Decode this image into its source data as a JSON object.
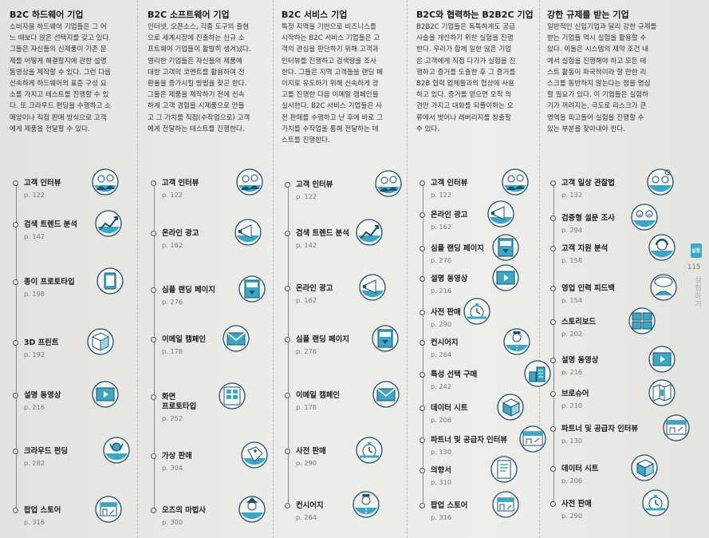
{
  "colors": {
    "accent": "#3aa7c4",
    "dark": "#1f4f6e",
    "line": "#8a8a88"
  },
  "side": {
    "tab_label": "실험",
    "page_number": "115",
    "section_label": "실험하기"
  },
  "columns": [
    {
      "title": "B2C 하드웨어 기업",
      "desc": [
        "소비자용 하드웨어 기업들은 그 어",
        "느 때보다 많은 선택지를 갖고 있다.",
        "그들은 자신들의 신제품이 기존 문",
        "제를 어떻게 해결할지에 관한 설명",
        "동영상을 제작할 수 있다. 그런 다음",
        "신속하게 하드웨어의 표준 구성 요",
        "소를 가지고 테스트를 진행할 수 있",
        "다. 또 크라우드 펀딩을 수행하고 소",
        "매앙이나 직접 판매 방식으로 고객",
        "에게 제품을 전달할 수 있다."
      ],
      "methods": [
        {
          "name": "고객 인터뷰",
          "page": "p. 122",
          "icon": "people-talking-icon"
        },
        {
          "name": "검색 트렌드 분석",
          "page": "p. 142",
          "icon": "trend-chart-icon"
        },
        {
          "name": "종이 프로토타입",
          "page": "p. 198",
          "icon": "paper-tablet-icon"
        },
        {
          "name": "3D 프린트",
          "page": "p. 192",
          "icon": "cube-icon"
        },
        {
          "name": "설명 동영상",
          "page": "p. 216",
          "icon": "video-player-icon"
        },
        {
          "name": "크라우드 펀딩",
          "page": "p. 282",
          "icon": "crowd-funding-icon"
        },
        {
          "name": "팝업 스토어",
          "page": "p. 316",
          "icon": "popup-store-icon"
        }
      ]
    },
    {
      "title": "B2C 소프트웨어 기업",
      "desc": [
        "인터넷, 오픈소스, 각종 도구의 출현",
        "으로 세계시장에 진출하는 신규 소",
        "프트웨어 기업들이 활발히 생겨났다.",
        "영리한 기업들은 자신들의 제품에",
        "대한 고객의 코멘트를 활용하여 전",
        "환율을 증가시킬 방법을 찾곤 한다.",
        "그들은 제품을 제작하기 전에 신속",
        "하게 고객 경험을 시제품으로 만들",
        "고 그 가치를 직접(수작업으로) 고객",
        "에게 전달하는 테스트를 진행한다."
      ],
      "methods": [
        {
          "name": "고객 인터뷰",
          "page": "p. 122",
          "icon": "people-talking-icon"
        },
        {
          "name": "온라인 광고",
          "page": "p. 162",
          "icon": "megaphone-icon"
        },
        {
          "name": "심플 랜딩 페이지",
          "page": "p. 276",
          "icon": "landing-page-icon"
        },
        {
          "name": "이메일 캠페인",
          "page": "p. 178",
          "icon": "envelope-icon"
        },
        {
          "name": "화면\n프로토타입",
          "page": "p. 252",
          "icon": "screen-grid-icon"
        },
        {
          "name": "가상 판매",
          "page": "p. 304",
          "icon": "price-tag-icon"
        },
        {
          "name": "오즈의 마법사",
          "page": "p. 300",
          "icon": "wizard-icon"
        }
      ]
    },
    {
      "title": "B2C 서비스 기업",
      "desc": [
        "특정 지역을 기반으로 비즈니스를",
        "시작하는 B2C 서비스 기업들은 고",
        "객의 관심을 판단하기 위해 고객과",
        "인터뷰를 진행하고 검색량을 조사",
        "한다. 그들은 지역 고객들을 랜딩 페",
        "이지로 유도하기 위해 신속하게 광",
        "고를 진행한 다음 이메일 캠페인을",
        "실시한다. B2C 서비스 기업들은 사",
        "전 판매를 수행하고 난 후에 바로 그",
        "가치를 수작업을 통해 전달하는 테",
        "스트를 진행한다."
      ],
      "methods": [
        {
          "name": "고객 인터뷰",
          "page": "p. 122",
          "icon": "people-talking-icon"
        },
        {
          "name": "검색 트렌드 분석",
          "page": "p. 142",
          "icon": "trend-chart-icon"
        },
        {
          "name": "온라인 광고",
          "page": "p. 162",
          "icon": "megaphone-icon"
        },
        {
          "name": "심플 랜딩 페이지",
          "page": "p. 276",
          "icon": "landing-page-icon"
        },
        {
          "name": "이메일 캠페인",
          "page": "p. 178",
          "icon": "envelope-icon"
        },
        {
          "name": "사전 판매",
          "page": "p. 290",
          "icon": "stopwatch-icon"
        },
        {
          "name": "컨시어지",
          "page": "p. 264",
          "icon": "concierge-icon"
        }
      ]
    },
    {
      "title": "B2C와 협력하는 B2B2C 기업",
      "desc": [
        "B2B2C 기업들은 독특하게도 공급",
        "사슬을 개선하기 위한 실험을 진행",
        "한다. 우리가 함께 일한 많은 기업",
        "은 고객에게 직접 다가가 실험을 진",
        "행하고 증거를 도출한 후 그 증거를",
        "B2B 협력 업체들과의 협상에 사용",
        "하고 있다. 증거를 얻으면 오직 의",
        "견만 가지고 대화를 되풀이하는 오",
        "류에서 벗어나 레버리지를 창출할",
        "수 있다."
      ],
      "methods": [
        {
          "name": "고객 인터뷰",
          "page": "p. 122",
          "icon": "people-talking-icon"
        },
        {
          "name": "온라인 광고",
          "page": "p. 162",
          "icon": "megaphone-icon"
        },
        {
          "name": "심플 랜딩 페이지",
          "page": "p. 276",
          "icon": "landing-page-icon"
        },
        {
          "name": "설명 동영상",
          "page": "p. 216",
          "icon": "video-player-icon"
        },
        {
          "name": "사전 판매",
          "page": "p. 290",
          "icon": "stopwatch-icon"
        },
        {
          "name": "컨시어지",
          "page": "p. 264",
          "icon": "concierge-icon"
        },
        {
          "name": "특성 선택 구매",
          "page": "p. 242",
          "icon": "city-block-icon"
        },
        {
          "name": "데이터 시트",
          "page": "p. 206",
          "icon": "data-sheet-icon"
        },
        {
          "name": "파트너 및 공급자 인터뷰",
          "page": "p. 130",
          "icon": "partner-icon"
        },
        {
          "name": "의향서",
          "page": "p. 310",
          "icon": "letter-icon"
        },
        {
          "name": "팝업 스토어",
          "page": "p. 316",
          "icon": "popup-store-icon"
        }
      ]
    },
    {
      "title": "강한 규제를 받는 기업",
      "desc": [
        "일반적인 신입기업과 달리 강한 규제를",
        "받는 기업들 역시 실험을 활용할 수",
        "있다. 이들은 시스템의 제약 조건 내",
        "에서 실험을 진행해야 하고 모든 테",
        "스트 활동이 파국적이라 할 만한 리",
        "스크를 동반하지 않는다는 점을 명심",
        "할 필요가 있다. 이 기업들은 실험하",
        "기가 꺼려지는, 극도로 리스크가 큰",
        "영역을 피고들어 실험을 진행할 수",
        "있는 부분을 찾아내야 한다."
      ],
      "methods": [
        {
          "name": "고객 일상 관찰법",
          "page": "p. 132",
          "icon": "day-in-life-icon"
        },
        {
          "name": "검증형 설문 조사",
          "page": "p. 294",
          "icon": "survey-faces-icon"
        },
        {
          "name": "고객 지원 분석",
          "page": "p. 158",
          "icon": "headset-icon"
        },
        {
          "name": "영업 인력 피드백",
          "page": "p. 154",
          "icon": "feedback-icon"
        },
        {
          "name": "스토리보드",
          "page": "p. 202",
          "icon": "storyboard-icon"
        },
        {
          "name": "설명 동영상",
          "page": "p. 216",
          "icon": "video-player-icon"
        },
        {
          "name": "브로슈어",
          "page": "p. 210",
          "icon": "brochure-icon"
        },
        {
          "name": "파트너 및 공급자 인터뷰",
          "page": "p. 130",
          "icon": "partner-icon"
        },
        {
          "name": "데이터 시트",
          "page": "p. 206",
          "icon": "data-sheet-icon"
        },
        {
          "name": "사전 판매",
          "page": "p. 290",
          "icon": "stopwatch-icon"
        }
      ]
    }
  ]
}
